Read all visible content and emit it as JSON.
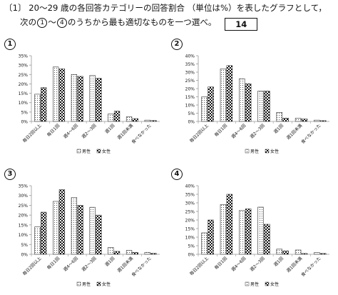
{
  "question": {
    "line1": "〔1〕 20〜29 歳の各回答カテゴリーの回答割合 （単位は%）を表したグラフとして，",
    "line2_prefix": "次の",
    "line2_c1": "1",
    "line2_mid": "〜",
    "line2_c4": "4",
    "line2_suffix": "のうちから最も適切なものを一つ選べ。",
    "answer_box": "14"
  },
  "legend": {
    "male": "男性",
    "female": "女性"
  },
  "colors": {
    "axis": "#999999",
    "bar_stroke": "#333333",
    "text": "#111111"
  },
  "chart_data": [
    {
      "type": "bar",
      "option": "1",
      "categories": [
        "毎日2回以上",
        "毎日1回",
        "週4〜6回",
        "週2〜3回",
        "週1回",
        "週1回未満",
        "食べなかった"
      ],
      "ylim": [
        0,
        35
      ],
      "yticks": [
        "0%",
        "5%",
        "10%",
        "15%",
        "20%",
        "25%",
        "30%",
        "35%"
      ],
      "series": [
        {
          "name": "男性",
          "values": [
            14.5,
            29,
            25,
            24.5,
            4,
            2.5,
            0.7
          ]
        },
        {
          "name": "女性",
          "values": [
            18,
            28,
            24,
            23,
            5.5,
            1.5,
            0.5
          ]
        }
      ]
    },
    {
      "type": "bar",
      "option": "2",
      "categories": [
        "毎日2回以上",
        "毎日1回",
        "週4〜6回",
        "週2〜3回",
        "週1回",
        "週1回未満",
        "食べなかった"
      ],
      "ylim": [
        0,
        40
      ],
      "yticks": [
        "0%",
        "5%",
        "10%",
        "15%",
        "20%",
        "25%",
        "30%",
        "35%",
        "40%"
      ],
      "series": [
        {
          "name": "男性",
          "values": [
            15,
            32,
            26,
            18.5,
            5.5,
            2,
            0.8
          ]
        },
        {
          "name": "女性",
          "values": [
            21,
            34,
            23,
            18.5,
            2,
            1.5,
            0.5
          ]
        }
      ]
    },
    {
      "type": "bar",
      "option": "3",
      "categories": [
        "毎日2回以上",
        "毎日1回",
        "週4〜6回",
        "週2〜3回",
        "週1回",
        "週1回未満",
        "食べなかった"
      ],
      "ylim": [
        0,
        35
      ],
      "yticks": [
        "0%",
        "5%",
        "10%",
        "15%",
        "20%",
        "25%",
        "30%",
        "35%"
      ],
      "series": [
        {
          "name": "男性",
          "values": [
            14,
            27,
            29,
            24,
            3.5,
            2,
            1
          ]
        },
        {
          "name": "女性",
          "values": [
            21.5,
            33,
            25,
            20,
            1.5,
            1,
            0.5
          ]
        }
      ]
    },
    {
      "type": "bar",
      "option": "4",
      "categories": [
        "毎日2回以上",
        "毎日1回",
        "週4〜6回",
        "週2〜3回",
        "週1回",
        "週1回未満",
        "食べなかった"
      ],
      "ylim": [
        0,
        40
      ],
      "yticks": [
        "0%",
        "5%",
        "10%",
        "15%",
        "20%",
        "25%",
        "30%",
        "35%",
        "40%"
      ],
      "series": [
        {
          "name": "男性",
          "values": [
            12.5,
            29,
            25.5,
            27.5,
            3,
            2.5,
            1
          ]
        },
        {
          "name": "女性",
          "values": [
            20,
            35,
            26.5,
            17.5,
            2,
            0.5,
            0.5
          ]
        }
      ]
    }
  ]
}
